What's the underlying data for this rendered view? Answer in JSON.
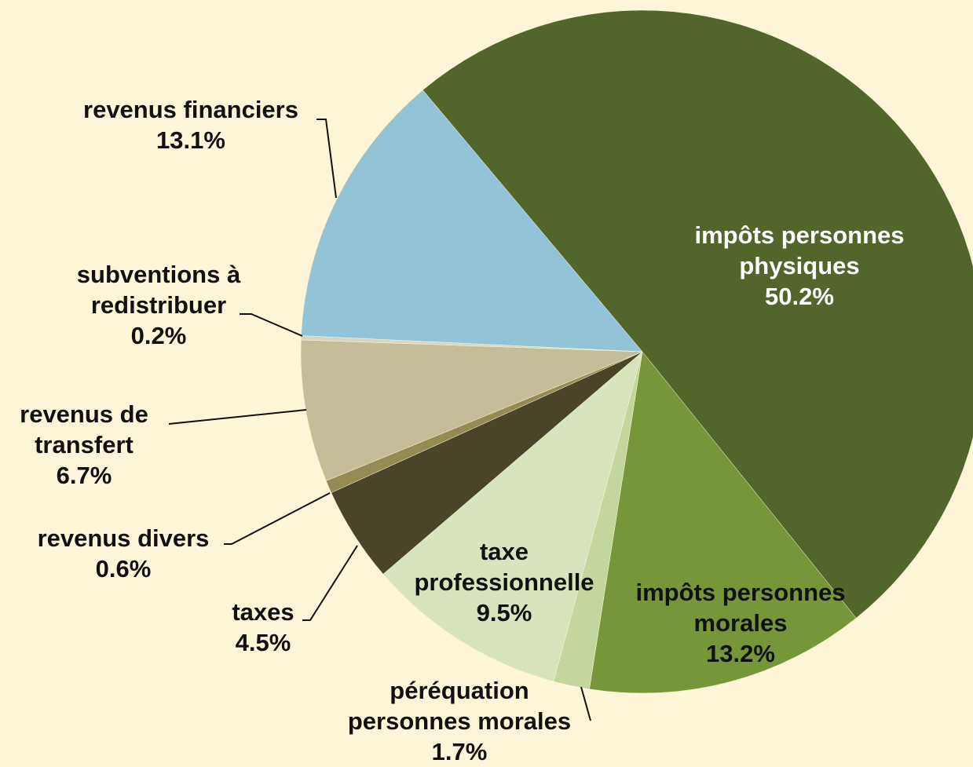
{
  "chart_data": {
    "type": "pie",
    "categories": [
      "impôts personnes physiques",
      "impôts personnes morales",
      "péréquation personnes morales",
      "taxe professionnelle",
      "taxes",
      "revenus divers",
      "revenus de transfert",
      "subventions à redistribuer",
      "revenus financiers"
    ],
    "values": [
      50.2,
      13.2,
      1.7,
      9.5,
      4.5,
      0.6,
      6.7,
      0.2,
      13.1
    ],
    "value_labels": [
      "50.2%",
      "13.2%",
      "1.7%",
      "9.5%",
      "4.5%",
      "0.6%",
      "6.7%",
      "0.2%",
      "13.1%"
    ],
    "colors": [
      "#52652a",
      "#77963a",
      "#c3d69b",
      "#d8e4bc",
      "#4a452a",
      "#948a54",
      "#c4bd97",
      "#d6d6c0",
      "#93c3d6"
    ]
  }
}
